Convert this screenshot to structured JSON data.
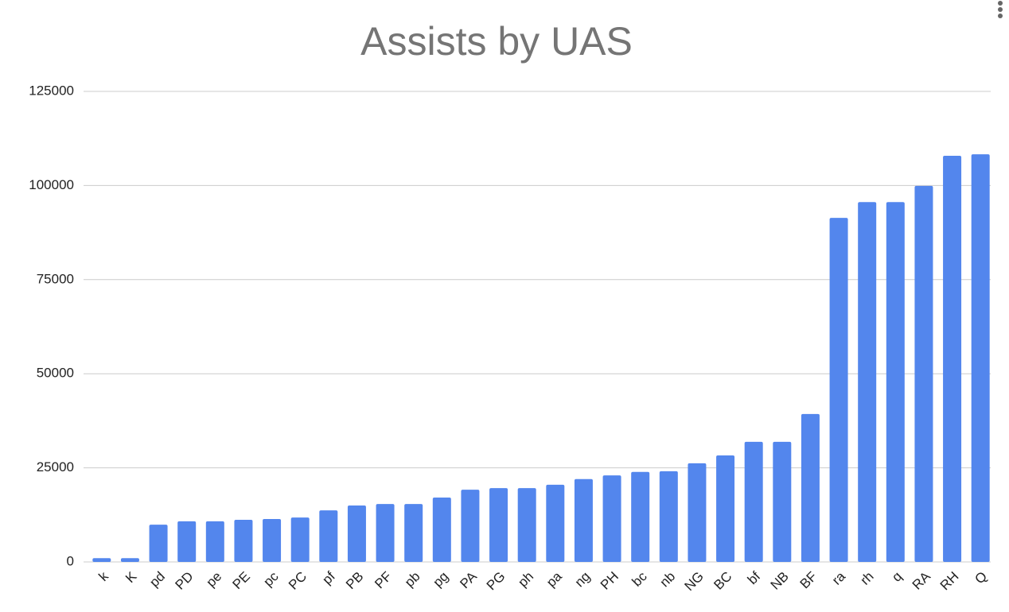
{
  "chart_data": {
    "type": "bar",
    "title": "Assists by UAS",
    "categories": [
      "k",
      "K",
      "pd",
      "PD",
      "pe",
      "PE",
      "pc",
      "PC",
      "pf",
      "PB",
      "PF",
      "pb",
      "pg",
      "PA",
      "PG",
      "ph",
      "pa",
      "ng",
      "PH",
      "bc",
      "nb",
      "NG",
      "BC",
      "bf",
      "NB",
      "BF",
      "ra",
      "rh",
      "q",
      "RA",
      "RH",
      "Q"
    ],
    "values": [
      1000,
      1000,
      9900,
      10800,
      10800,
      11200,
      11400,
      11800,
      13700,
      15000,
      15400,
      15400,
      17100,
      19200,
      19600,
      19600,
      20500,
      22000,
      23000,
      23900,
      24100,
      26200,
      28300,
      31900,
      31900,
      39300,
      91400,
      95600,
      95600,
      99900,
      107900,
      108300
    ],
    "color": "#5386ed",
    "ylim": [
      0,
      125000
    ],
    "yticks": [
      0,
      25000,
      50000,
      75000,
      100000,
      125000
    ],
    "grid": true
  }
}
